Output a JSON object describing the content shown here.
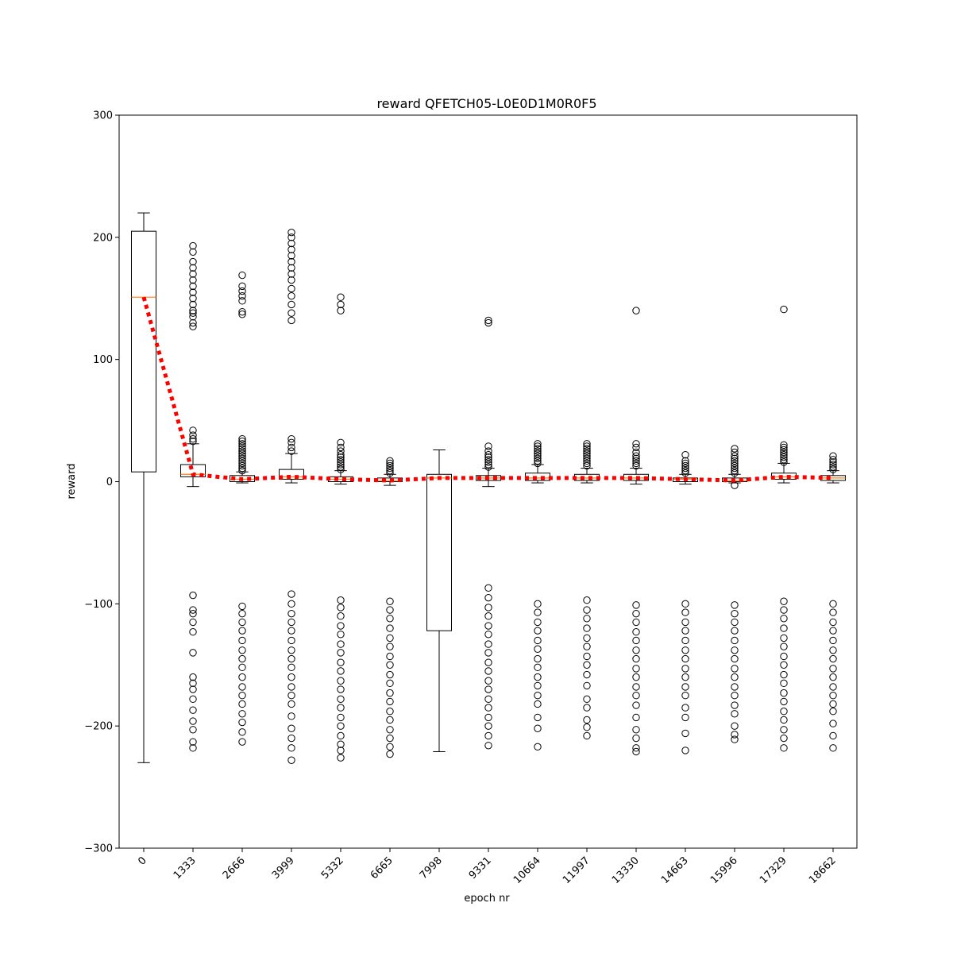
{
  "chart_data": {
    "type": "box",
    "title": "reward QFETCH05-L0E0D1M0R0F5",
    "xlabel": "epoch nr",
    "ylabel": "reward",
    "ylim": [
      -300,
      300
    ],
    "yticks": [
      -300,
      -200,
      -100,
      0,
      100,
      200,
      300
    ],
    "categories": [
      "0",
      "1333",
      "2666",
      "3999",
      "5332",
      "6665",
      "7998",
      "9331",
      "10664",
      "11997",
      "13330",
      "14663",
      "15996",
      "17329",
      "18662"
    ],
    "boxes": [
      {
        "q1": 8,
        "median": 151,
        "q3": 205,
        "whisker_low": -230,
        "whisker_high": 220,
        "mean": 151,
        "fliers_high": [],
        "fliers_low": []
      },
      {
        "q1": 4,
        "median": 6,
        "q3": 14,
        "whisker_low": -4,
        "whisker_high": 31,
        "mean": 6,
        "fliers_high": [
          33,
          35,
          38,
          42,
          127,
          130,
          135,
          138,
          140,
          145,
          150,
          155,
          160,
          165,
          170,
          175,
          180,
          188,
          193
        ],
        "fliers_low": [
          -93,
          -105,
          -108,
          -115,
          -123,
          -140,
          -160,
          -165,
          -170,
          -178,
          -187,
          -196,
          -203,
          -213,
          -218
        ]
      },
      {
        "q1": 0,
        "median": 2,
        "q3": 5,
        "whisker_low": -1,
        "whisker_high": 8,
        "mean": 2,
        "fliers_high": [
          9,
          11,
          13,
          15,
          17,
          19,
          21,
          23,
          25,
          27,
          29,
          31,
          33,
          35,
          137,
          139,
          148,
          152,
          156,
          160,
          169
        ],
        "fliers_low": [
          -102,
          -108,
          -115,
          -122,
          -130,
          -138,
          -145,
          -152,
          -160,
          -168,
          -175,
          -182,
          -190,
          -197,
          -205,
          -213
        ]
      },
      {
        "q1": 2,
        "median": 4,
        "q3": 10,
        "whisker_low": -1,
        "whisker_high": 23,
        "mean": 4,
        "fliers_high": [
          25,
          28,
          32,
          35,
          132,
          138,
          145,
          152,
          158,
          165,
          170,
          175,
          180,
          185,
          190,
          195,
          200,
          204
        ],
        "fliers_low": [
          -92,
          -100,
          -108,
          -115,
          -122,
          -130,
          -138,
          -145,
          -152,
          -160,
          -168,
          -175,
          -182,
          -192,
          -202,
          -210,
          -218,
          -228
        ]
      },
      {
        "q1": 0,
        "median": 2,
        "q3": 4,
        "whisker_low": -2,
        "whisker_high": 9,
        "mean": 2,
        "fliers_high": [
          10,
          12,
          14,
          16,
          18,
          20,
          22,
          25,
          28,
          32,
          140,
          145,
          151
        ],
        "fliers_low": [
          -97,
          -103,
          -110,
          -118,
          -125,
          -133,
          -140,
          -148,
          -155,
          -163,
          -170,
          -178,
          -185,
          -193,
          -200,
          -208,
          -215,
          -220,
          -226
        ]
      },
      {
        "q1": 0,
        "median": 1,
        "q3": 3,
        "whisker_low": -3,
        "whisker_high": 6,
        "mean": 1,
        "fliers_high": [
          7,
          9,
          11,
          13,
          15,
          17
        ],
        "fliers_low": [
          -98,
          -105,
          -112,
          -120,
          -128,
          -135,
          -143,
          -150,
          -158,
          -165,
          -173,
          -180,
          -188,
          -195,
          -203,
          -210,
          -217,
          -223
        ]
      },
      {
        "q1": -122,
        "median": 3,
        "q3": 6,
        "whisker_low": -221,
        "whisker_high": 26,
        "mean": 3,
        "fliers_high": [],
        "fliers_low": []
      },
      {
        "q1": 1,
        "median": 3,
        "q3": 5,
        "whisker_low": -4,
        "whisker_high": 11,
        "mean": 3,
        "fliers_high": [
          12,
          14,
          16,
          18,
          20,
          22,
          25,
          29,
          130,
          132
        ],
        "fliers_low": [
          -87,
          -95,
          -103,
          -110,
          -118,
          -125,
          -133,
          -140,
          -148,
          -155,
          -163,
          -170,
          -178,
          -185,
          -193,
          -200,
          -208,
          -216
        ]
      },
      {
        "q1": 1,
        "median": 3,
        "q3": 7,
        "whisker_low": -1,
        "whisker_high": 14,
        "mean": 3,
        "fliers_high": [
          15,
          17,
          19,
          21,
          23,
          25,
          27,
          29,
          31
        ],
        "fliers_low": [
          -100,
          -107,
          -115,
          -122,
          -130,
          -137,
          -145,
          -152,
          -160,
          -167,
          -175,
          -182,
          -193,
          -202,
          -217
        ]
      },
      {
        "q1": 1,
        "median": 3,
        "q3": 6,
        "whisker_low": -1,
        "whisker_high": 11,
        "mean": 3,
        "fliers_high": [
          13,
          15,
          17,
          19,
          21,
          23,
          25,
          27,
          29,
          31
        ],
        "fliers_low": [
          -97,
          -105,
          -112,
          -120,
          -128,
          -135,
          -143,
          -150,
          -158,
          -167,
          -178,
          -185,
          -195,
          -201,
          -208
        ]
      },
      {
        "q1": 1,
        "median": 3,
        "q3": 6,
        "whisker_low": -2,
        "whisker_high": 11,
        "mean": 3,
        "fliers_high": [
          13,
          15,
          17,
          19,
          21,
          24,
          28,
          31,
          140
        ],
        "fliers_low": [
          -101,
          -108,
          -115,
          -123,
          -130,
          -138,
          -145,
          -153,
          -160,
          -168,
          -175,
          -183,
          -193,
          -203,
          -210,
          -218,
          -221
        ]
      },
      {
        "q1": 0,
        "median": 2,
        "q3": 3,
        "whisker_low": -2,
        "whisker_high": 6,
        "mean": 2,
        "fliers_high": [
          7,
          9,
          11,
          13,
          15,
          17,
          22
        ],
        "fliers_low": [
          -100,
          -107,
          -115,
          -122,
          -130,
          -138,
          -145,
          -153,
          -160,
          -168,
          -175,
          -185,
          -193,
          -206,
          -220
        ]
      },
      {
        "q1": 0,
        "median": 1,
        "q3": 3,
        "whisker_low": -1,
        "whisker_high": 6,
        "mean": 1,
        "fliers_high": [
          7,
          9,
          11,
          13,
          15,
          17,
          19,
          21,
          24,
          27
        ],
        "fliers_low": [
          -3,
          -101,
          -108,
          -115,
          -122,
          -130,
          -138,
          -145,
          -153,
          -160,
          -168,
          -175,
          -183,
          -190,
          -200,
          -207,
          -211
        ]
      },
      {
        "q1": 2,
        "median": 4,
        "q3": 7,
        "whisker_low": -1,
        "whisker_high": 15,
        "mean": 4,
        "fliers_high": [
          16,
          18,
          20,
          22,
          24,
          26,
          28,
          30,
          141
        ],
        "fliers_low": [
          -98,
          -105,
          -112,
          -120,
          -128,
          -135,
          -143,
          -150,
          -158,
          -165,
          -173,
          -180,
          -188,
          -195,
          -203,
          -210,
          -218
        ]
      },
      {
        "q1": 1,
        "median": 3,
        "q3": 5,
        "whisker_low": -1,
        "whisker_high": 9,
        "mean": 3,
        "fliers_high": [
          10,
          12,
          14,
          16,
          18,
          21
        ],
        "fliers_low": [
          -100,
          -107,
          -115,
          -122,
          -130,
          -138,
          -145,
          -153,
          -160,
          -168,
          -175,
          -182,
          -188,
          -198,
          -208,
          -218
        ]
      }
    ],
    "mean_line": {
      "color": "#ff0000",
      "style": "dotted"
    },
    "median_color": "#ff7f0e",
    "grid": false,
    "legend": "none"
  }
}
